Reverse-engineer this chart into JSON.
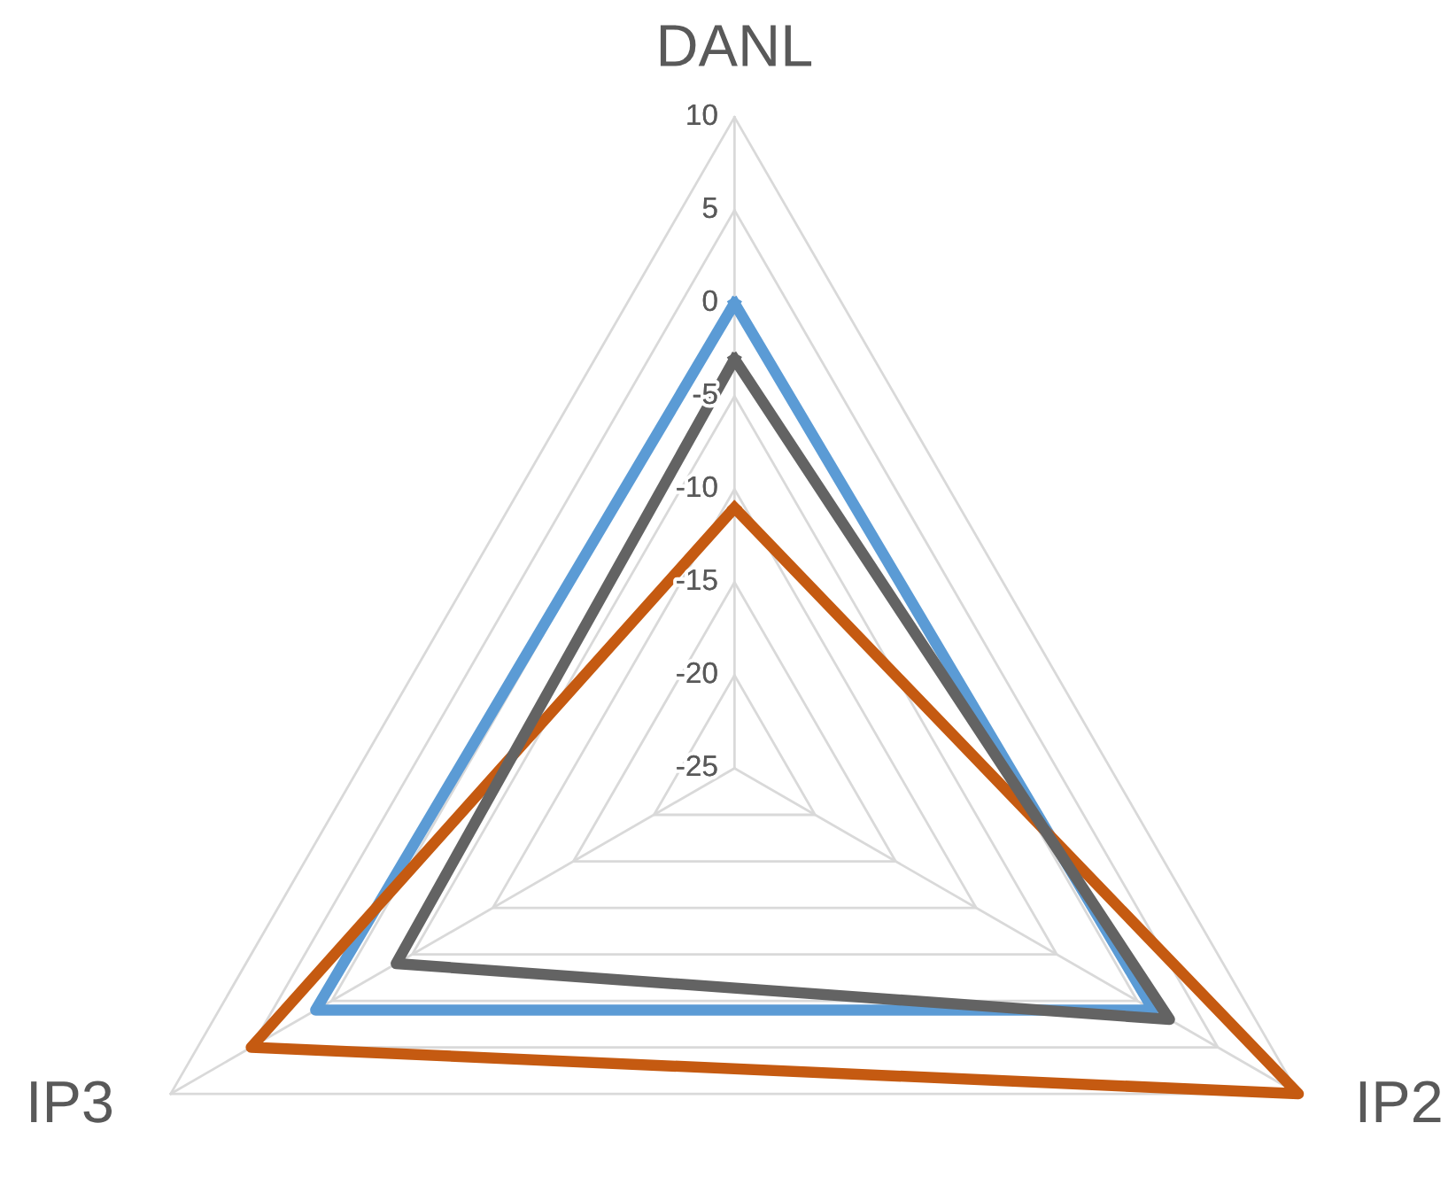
{
  "chart_data": {
    "type": "radar",
    "categories": [
      "DANL",
      "IP2",
      "IP3"
    ],
    "ylim": [
      -25,
      10
    ],
    "yticks": [
      -25,
      -20,
      -15,
      -10,
      -5,
      0,
      5,
      10
    ],
    "grid": true,
    "legend": false,
    "series": [
      {
        "color": "#5b9bd5",
        "values": [
          0,
          1,
          1
        ]
      },
      {
        "color": "#c55a11",
        "values": [
          -11,
          10,
          5
        ]
      },
      {
        "color": "#636363",
        "values": [
          -3,
          2,
          -4
        ]
      }
    ]
  }
}
